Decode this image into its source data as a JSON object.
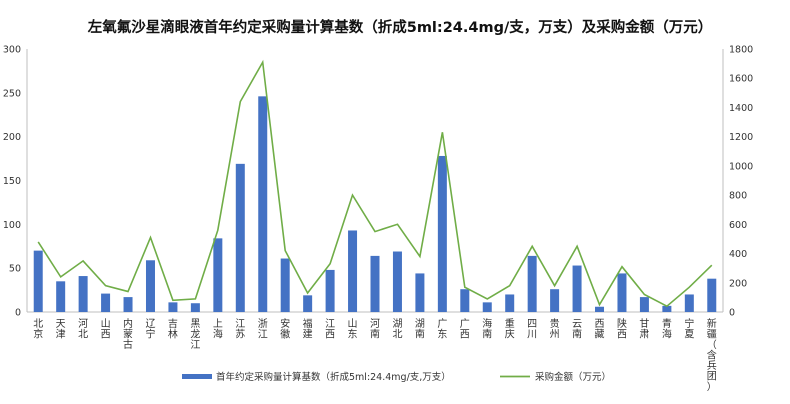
{
  "chart_data": {
    "type": "bar",
    "title": "左氧氟沙星滴眼液首年约定采购量计算基数（折成5ml:24.4mg/支，万支）及采购金额（万元）",
    "categories": [
      "北京",
      "天津",
      "河北",
      "山西",
      "内蒙古",
      "辽宁",
      "吉林",
      "黑龙江",
      "上海",
      "江苏",
      "浙江",
      "安徽",
      "福建",
      "江西",
      "山东",
      "河南",
      "湖北",
      "湖南",
      "广东",
      "广西",
      "海南",
      "重庆",
      "四川",
      "贵州",
      "云南",
      "西藏",
      "陕西",
      "甘肃",
      "青海",
      "宁夏",
      "新疆（含兵团）"
    ],
    "left_axis": {
      "min": 0,
      "max": 300,
      "ticks": [
        "0",
        "50",
        "100",
        "150",
        "200",
        "250",
        "300"
      ]
    },
    "right_axis": {
      "min": 0,
      "max": 1800,
      "ticks": [
        "0",
        "200",
        "400",
        "600",
        "800",
        "1000",
        "1200",
        "1400",
        "1600",
        "1800"
      ]
    },
    "grid": false,
    "legend_position": "bottom",
    "series": [
      {
        "name": "首年约定采购量计算基数（折成5ml:24.4mg/支,万支）",
        "type": "bar",
        "axis": "left",
        "color": "#4472C4",
        "values": [
          70,
          35,
          41,
          21,
          17,
          59,
          11,
          10,
          84,
          169,
          246,
          61,
          19,
          48,
          93,
          64,
          69,
          44,
          178,
          26,
          11,
          20,
          64,
          26,
          53,
          6,
          44,
          17,
          7,
          20,
          38
        ]
      },
      {
        "name": "采购金额（万元）",
        "type": "line",
        "axis": "right",
        "color": "#70AD47",
        "values": [
          480,
          240,
          350,
          180,
          140,
          510,
          80,
          90,
          560,
          1440,
          1710,
          420,
          130,
          330,
          800,
          550,
          600,
          380,
          1230,
          170,
          90,
          180,
          450,
          180,
          450,
          50,
          310,
          120,
          40,
          170,
          320
        ]
      }
    ]
  }
}
